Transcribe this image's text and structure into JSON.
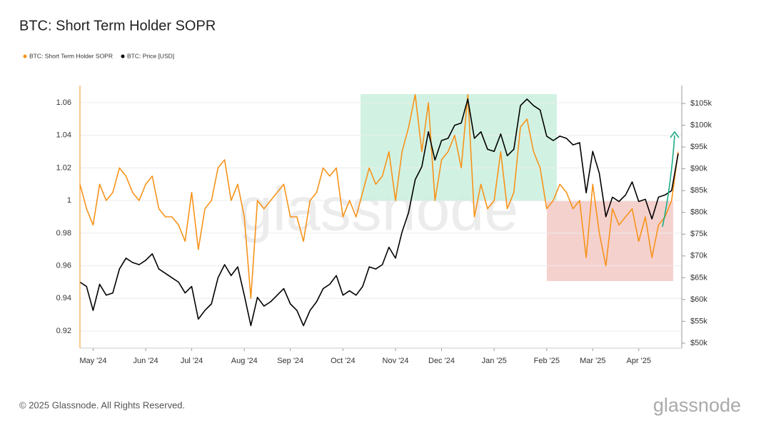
{
  "chart_data": {
    "type": "line",
    "title": "BTC: Short Term Holder SOPR",
    "footer": "© 2025 Glassnode. All Rights Reserved.",
    "logo": "glassnode",
    "watermark": "glassnode",
    "categories": [
      null,
      null,
      "May '24",
      null,
      null,
      null,
      null,
      null,
      null,
      null,
      "Jun '24",
      null,
      null,
      null,
      null,
      null,
      null,
      "Jul '24",
      null,
      null,
      null,
      null,
      null,
      null,
      null,
      "Aug '24",
      null,
      null,
      null,
      null,
      null,
      null,
      "Sep '24",
      null,
      null,
      null,
      null,
      null,
      null,
      null,
      "Oct '24",
      null,
      null,
      null,
      null,
      null,
      null,
      null,
      "Nov '24",
      null,
      null,
      null,
      null,
      null,
      null,
      "Dec '24",
      null,
      null,
      null,
      null,
      null,
      null,
      null,
      "Jan '25",
      null,
      null,
      null,
      null,
      null,
      null,
      null,
      "Feb '25",
      null,
      null,
      null,
      null,
      null,
      null,
      "Mar '25",
      null,
      null,
      null,
      null,
      null,
      null,
      "Apr '25",
      null,
      null,
      null,
      null,
      null,
      null
    ],
    "series": [
      {
        "name": "BTC: Short Term Holder SOPR",
        "color": "#f7931a",
        "axis": "y",
        "values": [
          1.01,
          0.995,
          0.985,
          1.01,
          1.0,
          1.005,
          1.02,
          1.015,
          1.005,
          1.0,
          1.01,
          1.015,
          0.995,
          0.99,
          0.99,
          0.985,
          0.975,
          1.005,
          0.97,
          0.995,
          1.0,
          1.02,
          1.025,
          1.0,
          1.01,
          0.99,
          0.94,
          1.0,
          0.995,
          1.0,
          1.005,
          1.01,
          0.99,
          0.99,
          0.975,
          1.0,
          1.005,
          1.02,
          1.015,
          1.02,
          0.99,
          1.0,
          0.99,
          1.005,
          1.02,
          1.01,
          1.015,
          1.03,
          1.0,
          1.03,
          1.045,
          1.065,
          1.03,
          1.06,
          1.0,
          1.025,
          1.03,
          1.04,
          1.02,
          1.065,
          0.99,
          1.01,
          0.995,
          1.0,
          1.03,
          0.995,
          1.005,
          1.045,
          1.05,
          1.03,
          1.02,
          0.995,
          1.0,
          1.01,
          1.005,
          0.995,
          1.0,
          0.965,
          1.01,
          0.98,
          0.96,
          0.995,
          0.985,
          0.99,
          0.995,
          0.975,
          0.99,
          0.965,
          0.985,
          0.99,
          1.0,
          1.03
        ]
      },
      {
        "name": "BTC: Price [USD]",
        "color": "#000000",
        "axis": "y2",
        "values": [
          64000,
          63000,
          57500,
          63500,
          61000,
          61500,
          67000,
          69500,
          68500,
          68000,
          69000,
          70500,
          67000,
          66000,
          65000,
          64000,
          61500,
          63000,
          55500,
          57500,
          59000,
          65000,
          68000,
          65500,
          67500,
          61000,
          54000,
          60500,
          58500,
          59500,
          61000,
          62500,
          59000,
          57500,
          54000,
          57500,
          59500,
          62500,
          63500,
          65500,
          61000,
          62000,
          61000,
          63000,
          67500,
          67000,
          68000,
          72000,
          69500,
          75500,
          80000,
          87500,
          90500,
          98500,
          92000,
          96500,
          97000,
          100000,
          100500,
          106000,
          97000,
          98500,
          94500,
          94000,
          98000,
          93000,
          94500,
          104500,
          106000,
          104500,
          103500,
          97500,
          96500,
          97500,
          97000,
          95500,
          96000,
          84500,
          94000,
          89000,
          79000,
          83500,
          82500,
          84000,
          87000,
          82500,
          83000,
          78500,
          83500,
          84000,
          85000,
          93500
        ]
      }
    ],
    "ylim": [
      0.9095,
      1.0705
    ],
    "yticks": [
      0.92,
      0.94,
      0.96,
      0.98,
      1,
      1.02,
      1.04,
      1.06
    ],
    "y2lim": [
      48850,
      109100
    ],
    "y2ticks": [
      {
        "value": 50000,
        "label": "$50k"
      },
      {
        "value": 55000,
        "label": "$55k"
      },
      {
        "value": 60000,
        "label": "$60k"
      },
      {
        "value": 65000,
        "label": "$65k"
      },
      {
        "value": 70000,
        "label": "$70k"
      },
      {
        "value": 75000,
        "label": "$75k"
      },
      {
        "value": 80000,
        "label": "$80k"
      },
      {
        "value": 85000,
        "label": "$85k"
      },
      {
        "value": 90000,
        "label": "$90k"
      },
      {
        "value": 95000,
        "label": "$95k"
      },
      {
        "value": 100000,
        "label": "$100k"
      },
      {
        "value": 105000,
        "label": "$105k"
      }
    ],
    "grid": true
  }
}
